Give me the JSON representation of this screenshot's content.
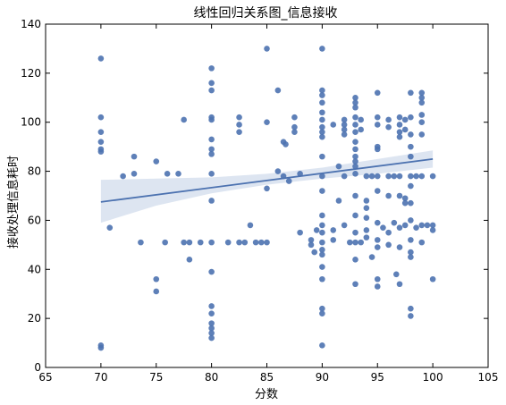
{
  "chart_data": {
    "type": "scatter",
    "title": "线性回归关系图_信息接收",
    "xlabel": "分数",
    "ylabel": "接收处理信息耗时",
    "xlim": [
      65,
      105
    ],
    "ylim": [
      0,
      140
    ],
    "xticks": [
      65,
      70,
      75,
      80,
      85,
      90,
      95,
      100,
      105
    ],
    "yticks": [
      0,
      20,
      40,
      60,
      80,
      100,
      120,
      140
    ],
    "grid": false,
    "point_color": "#4c72b0",
    "line_color": "#4c72b0",
    "band_color": "#c7d3e8",
    "regression_line": {
      "x": [
        70,
        100
      ],
      "y": [
        67.5,
        85
      ]
    },
    "confidence_band": {
      "x": [
        70,
        75,
        80,
        85,
        90,
        95,
        100
      ],
      "lower": [
        59,
        66,
        71,
        74.5,
        77,
        79,
        81.5
      ],
      "upper": [
        76.5,
        77,
        77.5,
        79,
        81.5,
        85,
        88.5
      ]
    },
    "points": [
      [
        70,
        126
      ],
      [
        70,
        102
      ],
      [
        70,
        96
      ],
      [
        70,
        92
      ],
      [
        70,
        89
      ],
      [
        70,
        88
      ],
      [
        70,
        9
      ],
      [
        70,
        8
      ],
      [
        70.8,
        57
      ],
      [
        72,
        78
      ],
      [
        73,
        86
      ],
      [
        73,
        79
      ],
      [
        73.6,
        51
      ],
      [
        75,
        84
      ],
      [
        75,
        36
      ],
      [
        75,
        31
      ],
      [
        75.8,
        51
      ],
      [
        76,
        79
      ],
      [
        77,
        79
      ],
      [
        77.5,
        101
      ],
      [
        77.5,
        51
      ],
      [
        78,
        51
      ],
      [
        78,
        44
      ],
      [
        79,
        51
      ],
      [
        80,
        122
      ],
      [
        80,
        116
      ],
      [
        80,
        113
      ],
      [
        80,
        102
      ],
      [
        80,
        101
      ],
      [
        80,
        93
      ],
      [
        80,
        89
      ],
      [
        80,
        87
      ],
      [
        80,
        79
      ],
      [
        80,
        68
      ],
      [
        80,
        51
      ],
      [
        80,
        39
      ],
      [
        80,
        25
      ],
      [
        80,
        22
      ],
      [
        80,
        18
      ],
      [
        80,
        16
      ],
      [
        80,
        14
      ],
      [
        80,
        12
      ],
      [
        81.5,
        51
      ],
      [
        82.5,
        102
      ],
      [
        82.5,
        99
      ],
      [
        82.5,
        96
      ],
      [
        82.5,
        51
      ],
      [
        83,
        51
      ],
      [
        83.5,
        58
      ],
      [
        84,
        51
      ],
      [
        84.5,
        51
      ],
      [
        85,
        130
      ],
      [
        85,
        100
      ],
      [
        85,
        73
      ],
      [
        85,
        51
      ],
      [
        86,
        113
      ],
      [
        86,
        80
      ],
      [
        86.5,
        78
      ],
      [
        86.5,
        92
      ],
      [
        86.7,
        91
      ],
      [
        87,
        76
      ],
      [
        87.5,
        102
      ],
      [
        87.5,
        98
      ],
      [
        87.5,
        96
      ],
      [
        88,
        79
      ],
      [
        88,
        55
      ],
      [
        89,
        52
      ],
      [
        89,
        50
      ],
      [
        89.3,
        47
      ],
      [
        89.5,
        56
      ],
      [
        90,
        130
      ],
      [
        90,
        113
      ],
      [
        90,
        111
      ],
      [
        90,
        108
      ],
      [
        90,
        104
      ],
      [
        90,
        101
      ],
      [
        90,
        98
      ],
      [
        90,
        96
      ],
      [
        90,
        94
      ],
      [
        90,
        86
      ],
      [
        90,
        78
      ],
      [
        90,
        72
      ],
      [
        90,
        62
      ],
      [
        90,
        58
      ],
      [
        90,
        55
      ],
      [
        90,
        51
      ],
      [
        90,
        48
      ],
      [
        90,
        46
      ],
      [
        90,
        41
      ],
      [
        90,
        36
      ],
      [
        90,
        24
      ],
      [
        90,
        22
      ],
      [
        90,
        9
      ],
      [
        91,
        99
      ],
      [
        91,
        56
      ],
      [
        91,
        52
      ],
      [
        91.5,
        82
      ],
      [
        91.5,
        68
      ],
      [
        92,
        101
      ],
      [
        92,
        99
      ],
      [
        92,
        97
      ],
      [
        92,
        95
      ],
      [
        92,
        78
      ],
      [
        92,
        58
      ],
      [
        92.5,
        51
      ],
      [
        93,
        110
      ],
      [
        93,
        108
      ],
      [
        93,
        106
      ],
      [
        93,
        102
      ],
      [
        93,
        99
      ],
      [
        93,
        96
      ],
      [
        93,
        92
      ],
      [
        93,
        89
      ],
      [
        93,
        86
      ],
      [
        93,
        84
      ],
      [
        93,
        82
      ],
      [
        93,
        79
      ],
      [
        93,
        70
      ],
      [
        93,
        62
      ],
      [
        93,
        55
      ],
      [
        93,
        51
      ],
      [
        93,
        44
      ],
      [
        93,
        34
      ],
      [
        93.5,
        101
      ],
      [
        93.5,
        97
      ],
      [
        93.5,
        51
      ],
      [
        94,
        78
      ],
      [
        94,
        68
      ],
      [
        94,
        65
      ],
      [
        94,
        61
      ],
      [
        94,
        56
      ],
      [
        94,
        53
      ],
      [
        94.5,
        78
      ],
      [
        94.5,
        45
      ],
      [
        95,
        112
      ],
      [
        95,
        102
      ],
      [
        95,
        99
      ],
      [
        95,
        90
      ],
      [
        95,
        89
      ],
      [
        95,
        78
      ],
      [
        95,
        72
      ],
      [
        95,
        59
      ],
      [
        95,
        52
      ],
      [
        95,
        49
      ],
      [
        95,
        36
      ],
      [
        95,
        33
      ],
      [
        95.5,
        57
      ],
      [
        96,
        101
      ],
      [
        96,
        98
      ],
      [
        96,
        78
      ],
      [
        96,
        70
      ],
      [
        96,
        55
      ],
      [
        96,
        50
      ],
      [
        96.5,
        78
      ],
      [
        96.5,
        59
      ],
      [
        96.7,
        38
      ],
      [
        97,
        34
      ],
      [
        97,
        102
      ],
      [
        97,
        99
      ],
      [
        97,
        96
      ],
      [
        97,
        94
      ],
      [
        97,
        78
      ],
      [
        97,
        70
      ],
      [
        97,
        57
      ],
      [
        97,
        49
      ],
      [
        97.5,
        101
      ],
      [
        97.5,
        97
      ],
      [
        97.5,
        69
      ],
      [
        97.5,
        67
      ],
      [
        97.5,
        58
      ],
      [
        98,
        112
      ],
      [
        98,
        102
      ],
      [
        98,
        95
      ],
      [
        98,
        90
      ],
      [
        98,
        86
      ],
      [
        98,
        78
      ],
      [
        98,
        74
      ],
      [
        98,
        67
      ],
      [
        98,
        60
      ],
      [
        98,
        52
      ],
      [
        98,
        47
      ],
      [
        98,
        45
      ],
      [
        98,
        24
      ],
      [
        98,
        21
      ],
      [
        98.5,
        78
      ],
      [
        98.5,
        57
      ],
      [
        99,
        112
      ],
      [
        99,
        110
      ],
      [
        99,
        108
      ],
      [
        99,
        103
      ],
      [
        99,
        100
      ],
      [
        99,
        95
      ],
      [
        99,
        78
      ],
      [
        99,
        58
      ],
      [
        99,
        51
      ],
      [
        99.5,
        58
      ],
      [
        100,
        78
      ],
      [
        100,
        58
      ],
      [
        100,
        56
      ],
      [
        100,
        36
      ]
    ]
  }
}
